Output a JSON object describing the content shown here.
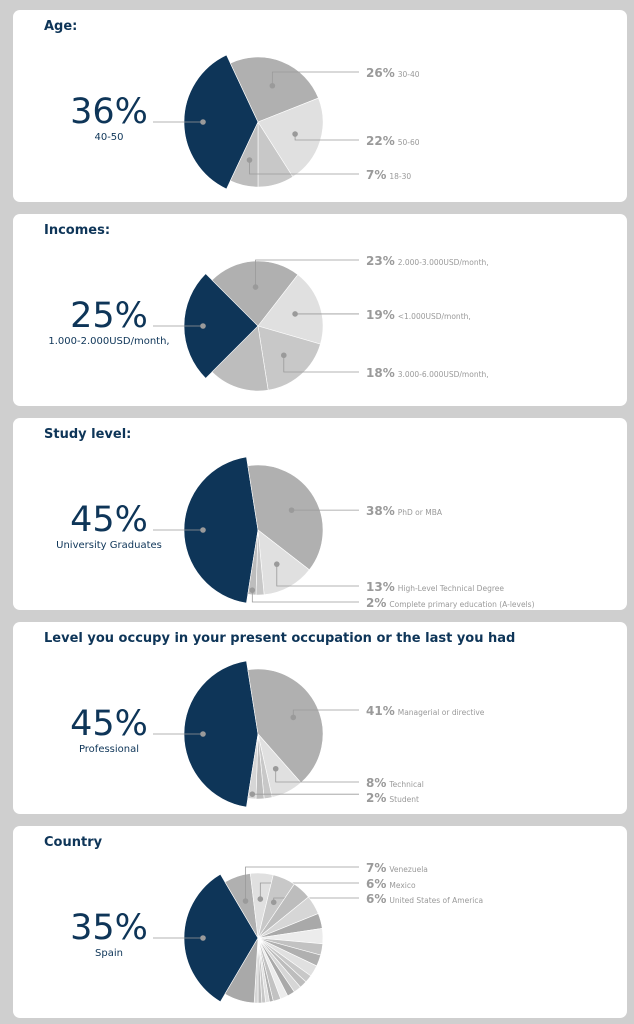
{
  "colors": {
    "main": "#0e3558",
    "greys": [
      "#b0b0b0",
      "#e0e0e0",
      "#c8c8c8",
      "#bdbdbd",
      "#d6d6d6",
      "#a9a9a9",
      "#ececec",
      "#c2c2c2"
    ],
    "leader": "#9a9a9a",
    "text_grey": "#9a9a9a"
  },
  "chart_data": [
    {
      "type": "pie",
      "title": "Age:",
      "slices": [
        {
          "percent": "36%",
          "label": "40-50",
          "value": 36,
          "highlight": true
        },
        {
          "percent": "26%",
          "label": "30-40",
          "value": 26
        },
        {
          "percent": "22%",
          "label": "50-60",
          "value": 22
        },
        {
          "percent": "",
          "label": "",
          "value": 9
        },
        {
          "percent": "7%",
          "label": "18-30",
          "value": 7
        }
      ]
    },
    {
      "type": "pie",
      "title": "Incomes:",
      "slices": [
        {
          "percent": "25%",
          "label": "1.000-2.000USD/month,",
          "value": 25,
          "highlight": true
        },
        {
          "percent": "23%",
          "label": "2.000-3.000USD/month,",
          "value": 23
        },
        {
          "percent": "19%",
          "label": "<1.000USD/month,",
          "value": 19
        },
        {
          "percent": "18%",
          "label": "3.000-6.000USD/month,",
          "value": 18
        },
        {
          "percent": "",
          "label": "",
          "value": 15
        }
      ]
    },
    {
      "type": "pie",
      "title": "Study level:",
      "slices": [
        {
          "percent": "45%",
          "label": "University Graduates",
          "value": 45,
          "highlight": true
        },
        {
          "percent": "38%",
          "label": "PhD or MBA",
          "value": 38
        },
        {
          "percent": "13%",
          "label": "High-Level Technical Degree",
          "value": 13
        },
        {
          "percent": "",
          "label": "",
          "value": 2
        },
        {
          "percent": "2%",
          "label": "Complete primary education (A-levels)",
          "value": 2
        }
      ]
    },
    {
      "type": "pie",
      "title": "Level you occupy in your present occupation or the last you had",
      "slices": [
        {
          "percent": "45%",
          "label": "Professional",
          "value": 45,
          "highlight": true
        },
        {
          "percent": "41%",
          "label": "Managerial or directive",
          "value": 41
        },
        {
          "percent": "8%",
          "label": "Technical",
          "value": 8
        },
        {
          "percent": "",
          "label": "",
          "value": 2
        },
        {
          "percent": "",
          "label": "",
          "value": 2
        },
        {
          "percent": "2%",
          "label": "Student",
          "value": 2
        }
      ]
    },
    {
      "type": "pie",
      "title": "Country",
      "slices": [
        {
          "percent": "35%",
          "label": "Spain",
          "value": 35,
          "highlight": true
        },
        {
          "percent": "7%",
          "label": "Venezuela",
          "value": 7
        },
        {
          "percent": "6%",
          "label": "Mexico",
          "value": 6
        },
        {
          "percent": "6%",
          "label": "United States of America",
          "value": 6
        },
        {
          "percent": "",
          "label": "",
          "value": 5
        },
        {
          "percent": "",
          "label": "",
          "value": 5
        },
        {
          "percent": "",
          "label": "",
          "value": 4
        },
        {
          "percent": "",
          "label": "",
          "value": 4
        },
        {
          "percent": "",
          "label": "",
          "value": 3
        },
        {
          "percent": "",
          "label": "",
          "value": 3
        },
        {
          "percent": "",
          "label": "",
          "value": 3
        },
        {
          "percent": "",
          "label": "",
          "value": 2
        },
        {
          "percent": "",
          "label": "",
          "value": 2
        },
        {
          "percent": "",
          "label": "",
          "value": 2
        },
        {
          "percent": "",
          "label": "",
          "value": 2
        },
        {
          "percent": "",
          "label": "",
          "value": 2
        },
        {
          "percent": "",
          "label": "",
          "value": 2
        },
        {
          "percent": "",
          "label": "",
          "value": 1
        },
        {
          "percent": "",
          "label": "",
          "value": 1
        },
        {
          "percent": "",
          "label": "",
          "value": 1
        },
        {
          "percent": "",
          "label": "",
          "value": 1
        },
        {
          "percent": "",
          "label": "",
          "value": 1
        },
        {
          "percent": "",
          "label": "",
          "value": 8
        }
      ]
    }
  ]
}
